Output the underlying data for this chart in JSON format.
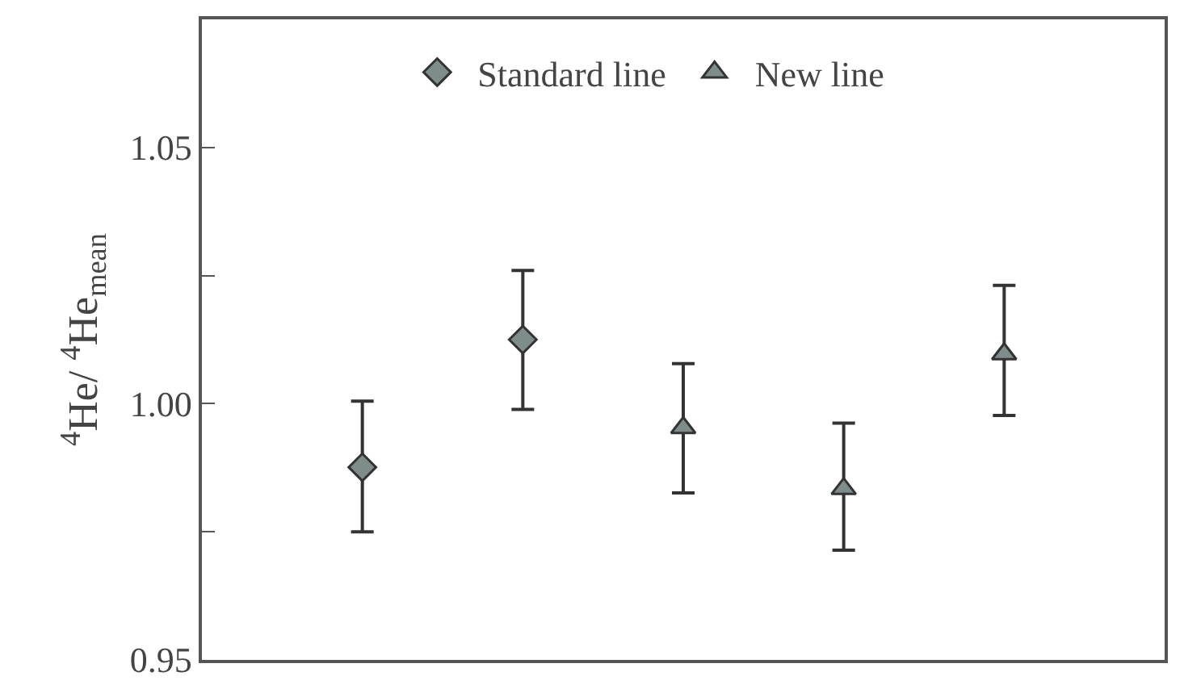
{
  "chart_data": {
    "type": "scatter",
    "ylabel": "$^{4}$He/ $^{4}$He$_{mean}$",
    "categories": [
      null,
      null,
      null,
      null,
      null
    ],
    "series": [
      {
        "name": "Standard line",
        "color": "#7f8c8c",
        "marker": "diamond",
        "values": [
          0.9876,
          1.0125,
          null,
          null,
          null
        ],
        "errors": [
          [
            0.975,
            1.0005
          ],
          [
            0.9989,
            1.026
          ],
          null,
          null,
          null
        ]
      },
      {
        "name": "New line",
        "color": "#7f8c8c",
        "marker": "triangle",
        "values": [
          null,
          null,
          0.9953,
          0.9834,
          1.0097
        ],
        "errors": [
          null,
          null,
          [
            0.9826,
            1.0078
          ],
          [
            0.9714,
            0.9962
          ],
          [
            0.9977,
            1.0231
          ]
        ]
      }
    ],
    "ylim": [
      0.95,
      1.075
    ],
    "yticks": [
      0.95,
      {
        "value": 0.975,
        "label": null
      },
      "1.00",
      {
        "value": 1.025,
        "label": null
      },
      1.05
    ],
    "legend": "top"
  }
}
